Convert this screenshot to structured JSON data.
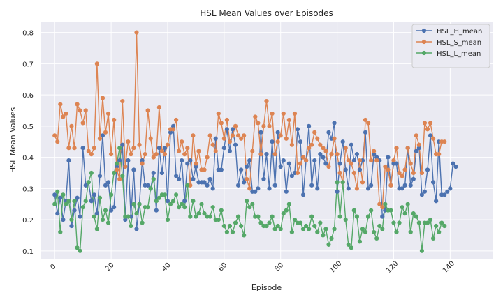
{
  "chart_data": {
    "type": "line",
    "title": "HSL Mean Values over Episodes",
    "xlabel": "Episode",
    "ylabel": "HSL Mean Values",
    "xlim": [
      -5,
      155
    ],
    "ylim": [
      0.075,
      0.835
    ],
    "xticks": [
      0,
      20,
      40,
      60,
      80,
      100,
      120,
      140
    ],
    "yticks": [
      0.1,
      0.2,
      0.3,
      0.4,
      0.5,
      0.6,
      0.7,
      0.8
    ],
    "ytick_labels": [
      "0.1",
      "0.2",
      "0.3",
      "0.4",
      "0.5",
      "0.6",
      "0.7",
      "0.8"
    ],
    "grid": true,
    "legend_position": "top-right",
    "series": [
      {
        "name": "HSL_H_mean",
        "color": "#4c72b0",
        "values": [
          0.28,
          0.22,
          0.27,
          0.2,
          0.26,
          0.39,
          0.18,
          0.23,
          0.27,
          0.21,
          0.43,
          0.31,
          0.32,
          0.26,
          0.28,
          0.22,
          0.34,
          0.47,
          0.31,
          0.32,
          0.23,
          0.24,
          0.37,
          0.39,
          0.44,
          0.2,
          0.39,
          0.21,
          0.36,
          0.17,
          0.25,
          0.39,
          0.31,
          0.31,
          0.3,
          0.35,
          0.23,
          0.43,
          0.35,
          0.43,
          0.26,
          0.48,
          0.5,
          0.34,
          0.33,
          0.39,
          0.26,
          0.38,
          0.39,
          0.33,
          0.37,
          0.32,
          0.32,
          0.32,
          0.31,
          0.33,
          0.3,
          0.46,
          0.36,
          0.36,
          0.43,
          0.49,
          0.42,
          0.49,
          0.44,
          0.31,
          0.36,
          0.32,
          0.37,
          0.39,
          0.29,
          0.29,
          0.3,
          0.48,
          0.33,
          0.41,
          0.3,
          0.45,
          0.31,
          0.48,
          0.37,
          0.39,
          0.29,
          0.38,
          0.34,
          0.35,
          0.49,
          0.45,
          0.28,
          0.39,
          0.5,
          0.31,
          0.39,
          0.3,
          0.41,
          0.4,
          0.38,
          0.48,
          0.46,
          0.51,
          0.29,
          0.38,
          0.45,
          0.36,
          0.3,
          0.44,
          0.39,
          0.41,
          0.36,
          0.39,
          0.48,
          0.3,
          0.31,
          0.41,
          0.4,
          0.39,
          0.21,
          0.23,
          0.4,
          0.31,
          0.38,
          0.38,
          0.3,
          0.3,
          0.31,
          0.43,
          0.31,
          0.33,
          0.42,
          0.43,
          0.28,
          0.29,
          0.36,
          0.47,
          0.32,
          0.26,
          0.45,
          0.28,
          0.28,
          0.29,
          0.3,
          0.38,
          0.37
        ]
      },
      {
        "name": "HSL_S_mean",
        "color": "#dd8452",
        "values": [
          0.47,
          0.45,
          0.57,
          0.53,
          0.54,
          0.43,
          0.5,
          0.43,
          0.57,
          0.55,
          0.51,
          0.55,
          0.42,
          0.41,
          0.43,
          0.7,
          0.46,
          0.59,
          0.48,
          0.54,
          0.41,
          0.52,
          0.36,
          0.33,
          0.58,
          0.37,
          0.45,
          0.41,
          0.43,
          0.8,
          0.44,
          0.38,
          0.41,
          0.55,
          0.46,
          0.4,
          0.41,
          0.56,
          0.42,
          0.41,
          0.44,
          0.49,
          0.49,
          0.52,
          0.42,
          0.45,
          0.41,
          0.43,
          0.31,
          0.47,
          0.38,
          0.42,
          0.36,
          0.36,
          0.4,
          0.47,
          0.44,
          0.42,
          0.54,
          0.51,
          0.46,
          0.52,
          0.45,
          0.47,
          0.5,
          0.47,
          0.46,
          0.47,
          0.33,
          0.3,
          0.42,
          0.53,
          0.51,
          0.41,
          0.5,
          0.58,
          0.5,
          0.54,
          0.41,
          0.45,
          0.47,
          0.54,
          0.46,
          0.52,
          0.44,
          0.54,
          0.35,
          0.38,
          0.4,
          0.39,
          0.43,
          0.44,
          0.48,
          0.46,
          0.44,
          0.43,
          0.42,
          0.37,
          0.41,
          0.46,
          0.41,
          0.35,
          0.32,
          0.43,
          0.39,
          0.38,
          0.35,
          0.3,
          0.39,
          0.32,
          0.52,
          0.51,
          0.39,
          0.42,
          0.39,
          0.25,
          0.24,
          0.37,
          0.36,
          0.31,
          0.39,
          0.43,
          0.35,
          0.34,
          0.36,
          0.43,
          0.38,
          0.35,
          0.47,
          0.44,
          0.35,
          0.51,
          0.49,
          0.51,
          0.46,
          0.41,
          0.41,
          0.45,
          0.45
        ]
      },
      {
        "name": "HSL_L_mean",
        "color": "#55a868",
        "values": [
          0.25,
          0.29,
          0.16,
          0.28,
          0.25,
          0.26,
          0.2,
          0.26,
          0.11,
          0.1,
          0.24,
          0.26,
          0.32,
          0.35,
          0.21,
          0.17,
          0.27,
          0.2,
          0.23,
          0.19,
          0.28,
          0.35,
          0.38,
          0.43,
          0.34,
          0.21,
          0.21,
          0.18,
          0.25,
          0.22,
          0.25,
          0.19,
          0.24,
          0.24,
          0.3,
          0.33,
          0.26,
          0.27,
          0.28,
          0.28,
          0.2,
          0.25,
          0.26,
          0.28,
          0.24,
          0.25,
          0.24,
          0.31,
          0.21,
          0.26,
          0.21,
          0.22,
          0.25,
          0.22,
          0.21,
          0.21,
          0.24,
          0.2,
          0.2,
          0.23,
          0.18,
          0.16,
          0.18,
          0.16,
          0.19,
          0.21,
          0.18,
          0.15,
          0.26,
          0.24,
          0.25,
          0.21,
          0.21,
          0.19,
          0.18,
          0.18,
          0.19,
          0.21,
          0.17,
          0.18,
          0.17,
          0.22,
          0.23,
          0.25,
          0.16,
          0.2,
          0.19,
          0.19,
          0.17,
          0.18,
          0.17,
          0.21,
          0.18,
          0.16,
          0.19,
          0.15,
          0.17,
          0.12,
          0.14,
          0.17,
          0.32,
          0.21,
          0.32,
          0.2,
          0.12,
          0.11,
          0.23,
          0.21,
          0.13,
          0.17,
          0.16,
          0.21,
          0.23,
          0.16,
          0.14,
          0.18,
          0.17,
          0.25,
          0.23,
          0.23,
          0.19,
          0.16,
          0.19,
          0.24,
          0.22,
          0.25,
          0.16,
          0.22,
          0.21,
          0.19,
          0.1,
          0.19,
          0.19,
          0.2,
          0.14,
          0.18,
          0.16,
          0.19,
          0.18
        ]
      }
    ]
  }
}
